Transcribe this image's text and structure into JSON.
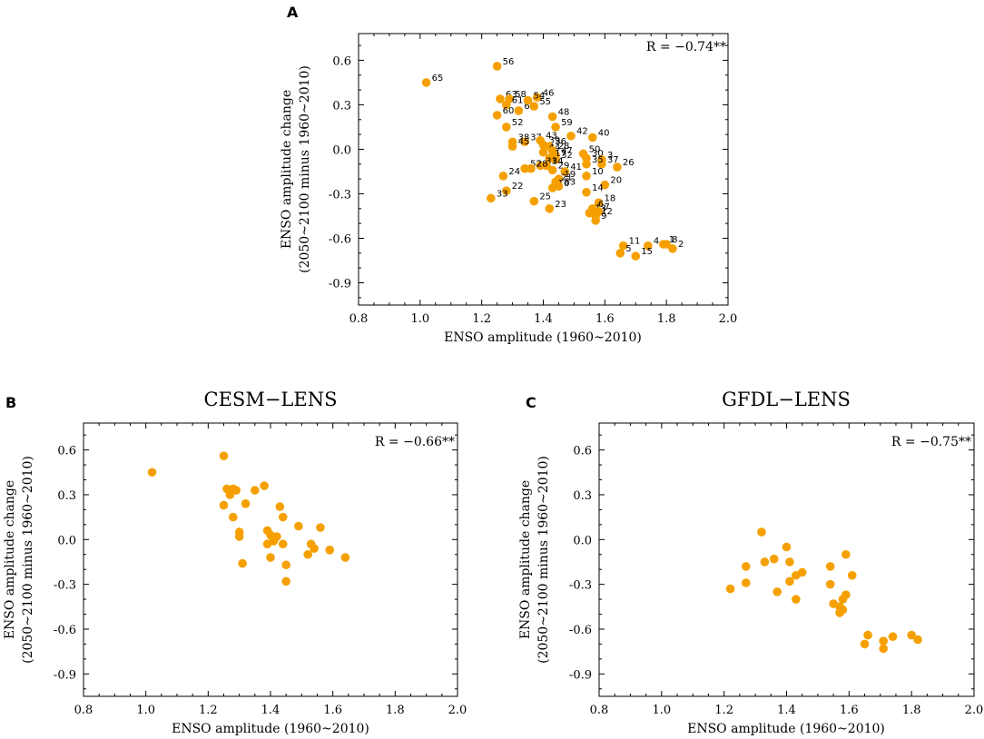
{
  "marker_color": "#F5A000",
  "chart_data": [
    {
      "type": "scatter",
      "panel_label": "A",
      "title": "",
      "xlabel": "ENSO amplitude (1960~2010)",
      "ylabel_line1": "ENSO amplitude change",
      "ylabel_line2": "(2050~2100 minus 1960~2010)",
      "xlim": [
        0.8,
        2.0
      ],
      "ylim": [
        -1.05,
        0.78
      ],
      "xticks": [
        0.8,
        1.0,
        1.2,
        1.4,
        1.6,
        1.8,
        2.0
      ],
      "xtick_labels": [
        "0.8",
        "1.0",
        "1.2",
        "1.4",
        "1.6",
        "1.8",
        "2.0"
      ],
      "yticks": [
        0.6,
        0.3,
        0.0,
        -0.3,
        -0.6,
        -0.9
      ],
      "ytick_labels": [
        "0.6",
        "0.3",
        "0.0",
        "-0.3",
        "-0.6",
        "-0.9"
      ],
      "annotation": "R = −0.74**",
      "points": [
        {
          "x": 1.02,
          "y": 0.45,
          "label": "65"
        },
        {
          "x": 1.25,
          "y": 0.56,
          "label": "56"
        },
        {
          "x": 1.26,
          "y": 0.34,
          "label": "63"
        },
        {
          "x": 1.29,
          "y": 0.34,
          "label": "58"
        },
        {
          "x": 1.28,
          "y": 0.3,
          "label": "61"
        },
        {
          "x": 1.25,
          "y": 0.23,
          "label": "60"
        },
        {
          "x": 1.32,
          "y": 0.26,
          "label": "62"
        },
        {
          "x": 1.38,
          "y": 0.35,
          "label": "46"
        },
        {
          "x": 1.35,
          "y": 0.33,
          "label": "54"
        },
        {
          "x": 1.37,
          "y": 0.29,
          "label": "55"
        },
        {
          "x": 1.28,
          "y": 0.15,
          "label": "52"
        },
        {
          "x": 1.43,
          "y": 0.22,
          "label": "48"
        },
        {
          "x": 1.44,
          "y": 0.15,
          "label": "59"
        },
        {
          "x": 1.3,
          "y": 0.05,
          "label": "38"
        },
        {
          "x": 1.34,
          "y": 0.05,
          "label": "37"
        },
        {
          "x": 1.3,
          "y": 0.02,
          "label": "45"
        },
        {
          "x": 1.39,
          "y": 0.06,
          "label": "43"
        },
        {
          "x": 1.4,
          "y": 0.03,
          "label": "39"
        },
        {
          "x": 1.42,
          "y": 0.02,
          "label": "36"
        },
        {
          "x": 1.49,
          "y": 0.09,
          "label": "42"
        },
        {
          "x": 1.56,
          "y": 0.08,
          "label": "40"
        },
        {
          "x": 1.4,
          "y": -0.02,
          "label": "44"
        },
        {
          "x": 1.43,
          "y": -0.01,
          "label": "28"
        },
        {
          "x": 1.44,
          "y": -0.04,
          "label": "47"
        },
        {
          "x": 1.42,
          "y": -0.06,
          "label": "17"
        },
        {
          "x": 1.44,
          "y": -0.07,
          "label": "32"
        },
        {
          "x": 1.53,
          "y": -0.03,
          "label": "50"
        },
        {
          "x": 1.54,
          "y": -0.06,
          "label": "30"
        },
        {
          "x": 1.59,
          "y": -0.07,
          "label": "3"
        },
        {
          "x": 1.59,
          "y": -0.1,
          "label": "37"
        },
        {
          "x": 1.54,
          "y": -0.1,
          "label": "35"
        },
        {
          "x": 1.64,
          "y": -0.12,
          "label": "26"
        },
        {
          "x": 1.39,
          "y": -0.11,
          "label": "31"
        },
        {
          "x": 1.41,
          "y": -0.11,
          "label": "34"
        },
        {
          "x": 1.43,
          "y": -0.14,
          "label": "29"
        },
        {
          "x": 1.47,
          "y": -0.15,
          "label": "41"
        },
        {
          "x": 1.34,
          "y": -0.13,
          "label": "52"
        },
        {
          "x": 1.36,
          "y": -0.13,
          "label": "28"
        },
        {
          "x": 1.27,
          "y": -0.18,
          "label": "24"
        },
        {
          "x": 1.45,
          "y": -0.2,
          "label": "19"
        },
        {
          "x": 1.44,
          "y": -0.22,
          "label": "21"
        },
        {
          "x": 1.54,
          "y": -0.18,
          "label": "10"
        },
        {
          "x": 1.6,
          "y": -0.24,
          "label": "20"
        },
        {
          "x": 1.43,
          "y": -0.26,
          "label": "16"
        },
        {
          "x": 1.45,
          "y": -0.25,
          "label": "53"
        },
        {
          "x": 1.54,
          "y": -0.29,
          "label": "14"
        },
        {
          "x": 1.28,
          "y": -0.28,
          "label": "22"
        },
        {
          "x": 1.23,
          "y": -0.33,
          "label": "33"
        },
        {
          "x": 1.37,
          "y": -0.35,
          "label": "25"
        },
        {
          "x": 1.42,
          "y": -0.4,
          "label": "23"
        },
        {
          "x": 1.58,
          "y": -0.36,
          "label": "18"
        },
        {
          "x": 1.56,
          "y": -0.4,
          "label": "6"
        },
        {
          "x": 1.55,
          "y": -0.43,
          "label": "13"
        },
        {
          "x": 1.57,
          "y": -0.45,
          "label": "12"
        },
        {
          "x": 1.58,
          "y": -0.42,
          "label": "7"
        },
        {
          "x": 1.57,
          "y": -0.48,
          "label": "9"
        },
        {
          "x": 1.66,
          "y": -0.65,
          "label": "11"
        },
        {
          "x": 1.74,
          "y": -0.65,
          "label": "4"
        },
        {
          "x": 1.79,
          "y": -0.64,
          "label": "1"
        },
        {
          "x": 1.8,
          "y": -0.64,
          "label": "8"
        },
        {
          "x": 1.82,
          "y": -0.67,
          "label": "2"
        },
        {
          "x": 1.65,
          "y": -0.7,
          "label": "5"
        },
        {
          "x": 1.7,
          "y": -0.72,
          "label": "15"
        }
      ]
    },
    {
      "type": "scatter",
      "panel_label": "B",
      "title": "CESM−LENS",
      "xlabel": "ENSO amplitude (1960~2010)",
      "ylabel_line1": "ENSO amplitude change",
      "ylabel_line2": "(2050~2100 minus 1960~2010)",
      "xlim": [
        0.8,
        2.0
      ],
      "ylim": [
        -1.05,
        0.78
      ],
      "xticks": [
        0.8,
        1.0,
        1.2,
        1.4,
        1.6,
        1.8,
        2.0
      ],
      "xtick_labels": [
        "0.8",
        "1.0",
        "1.2",
        "1.4",
        "1.6",
        "1.8",
        "2.0"
      ],
      "yticks": [
        0.6,
        0.3,
        0.0,
        -0.3,
        -0.6,
        -0.9
      ],
      "ytick_labels": [
        "0.6",
        "0.3",
        "0.0",
        "-0.3",
        "-0.6",
        "-0.9"
      ],
      "annotation": "R = −0.66**",
      "points": [
        {
          "x": 1.02,
          "y": 0.45
        },
        {
          "x": 1.25,
          "y": 0.56
        },
        {
          "x": 1.26,
          "y": 0.34
        },
        {
          "x": 1.28,
          "y": 0.34
        },
        {
          "x": 1.29,
          "y": 0.33
        },
        {
          "x": 1.27,
          "y": 0.3
        },
        {
          "x": 1.25,
          "y": 0.23
        },
        {
          "x": 1.32,
          "y": 0.24
        },
        {
          "x": 1.35,
          "y": 0.33
        },
        {
          "x": 1.38,
          "y": 0.36
        },
        {
          "x": 1.28,
          "y": 0.15
        },
        {
          "x": 1.43,
          "y": 0.22
        },
        {
          "x": 1.44,
          "y": 0.15
        },
        {
          "x": 1.3,
          "y": 0.05
        },
        {
          "x": 1.3,
          "y": 0.02
        },
        {
          "x": 1.39,
          "y": 0.06
        },
        {
          "x": 1.4,
          "y": 0.03
        },
        {
          "x": 1.42,
          "y": 0.02
        },
        {
          "x": 1.41,
          "y": -0.01
        },
        {
          "x": 1.39,
          "y": -0.03
        },
        {
          "x": 1.44,
          "y": -0.03
        },
        {
          "x": 1.49,
          "y": 0.09
        },
        {
          "x": 1.56,
          "y": 0.08
        },
        {
          "x": 1.53,
          "y": -0.03
        },
        {
          "x": 1.54,
          "y": -0.06
        },
        {
          "x": 1.59,
          "y": -0.07
        },
        {
          "x": 1.52,
          "y": -0.1
        },
        {
          "x": 1.64,
          "y": -0.12
        },
        {
          "x": 1.4,
          "y": -0.12
        },
        {
          "x": 1.31,
          "y": -0.16
        },
        {
          "x": 1.45,
          "y": -0.17
        },
        {
          "x": 1.45,
          "y": -0.28
        }
      ]
    },
    {
      "type": "scatter",
      "panel_label": "C",
      "title": "GFDL−LENS",
      "xlabel": "ENSO amplitude (1960~2010)",
      "ylabel_line1": "ENSO amplitude change",
      "ylabel_line2": "(2050~2100 minus 1960~2010)",
      "xlim": [
        0.8,
        2.0
      ],
      "ylim": [
        -1.05,
        0.78
      ],
      "xticks": [
        0.8,
        1.0,
        1.2,
        1.4,
        1.6,
        1.8,
        2.0
      ],
      "xtick_labels": [
        "0.8",
        "1.0",
        "1.2",
        "1.4",
        "1.6",
        "1.8",
        "2.0"
      ],
      "yticks": [
        0.6,
        0.3,
        0.0,
        -0.3,
        -0.6,
        -0.9
      ],
      "ytick_labels": [
        "0.6",
        "0.3",
        "0.0",
        "-0.3",
        "-0.6",
        "-0.9"
      ],
      "annotation": "R = −0.75**",
      "points": [
        {
          "x": 1.32,
          "y": 0.05
        },
        {
          "x": 1.4,
          "y": -0.05
        },
        {
          "x": 1.59,
          "y": -0.1
        },
        {
          "x": 1.27,
          "y": -0.18
        },
        {
          "x": 1.33,
          "y": -0.15
        },
        {
          "x": 1.36,
          "y": -0.13
        },
        {
          "x": 1.41,
          "y": -0.15
        },
        {
          "x": 1.45,
          "y": -0.22
        },
        {
          "x": 1.54,
          "y": -0.18
        },
        {
          "x": 1.61,
          "y": -0.24
        },
        {
          "x": 1.43,
          "y": -0.24
        },
        {
          "x": 1.41,
          "y": -0.28
        },
        {
          "x": 1.27,
          "y": -0.29
        },
        {
          "x": 1.54,
          "y": -0.3
        },
        {
          "x": 1.22,
          "y": -0.33
        },
        {
          "x": 1.37,
          "y": -0.35
        },
        {
          "x": 1.43,
          "y": -0.4
        },
        {
          "x": 1.59,
          "y": -0.37
        },
        {
          "x": 1.58,
          "y": -0.4
        },
        {
          "x": 1.55,
          "y": -0.43
        },
        {
          "x": 1.57,
          "y": -0.45
        },
        {
          "x": 1.58,
          "y": -0.47
        },
        {
          "x": 1.57,
          "y": -0.49
        },
        {
          "x": 1.66,
          "y": -0.64
        },
        {
          "x": 1.74,
          "y": -0.65
        },
        {
          "x": 1.8,
          "y": -0.64
        },
        {
          "x": 1.82,
          "y": -0.67
        },
        {
          "x": 1.65,
          "y": -0.7
        },
        {
          "x": 1.71,
          "y": -0.68
        },
        {
          "x": 1.71,
          "y": -0.73
        }
      ]
    }
  ]
}
